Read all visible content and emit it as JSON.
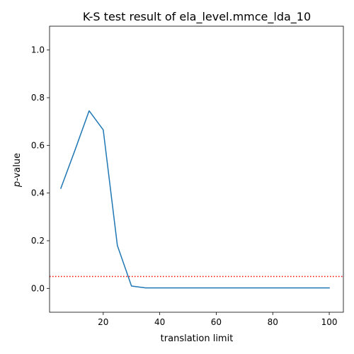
{
  "chart_data": {
    "type": "line",
    "title": "K-S test result of ela_level.mmce_lda_10",
    "xlabel": "translation limit",
    "ylabel_italic": "p",
    "ylabel_rest": "-value",
    "xlim": [
      1,
      105
    ],
    "ylim": [
      -0.1,
      1.1
    ],
    "xticks": [
      20,
      40,
      60,
      80,
      100
    ],
    "yticks": [
      0.0,
      0.2,
      0.4,
      0.6,
      0.8,
      1.0
    ],
    "xtick_labels": [
      "20",
      "40",
      "60",
      "80",
      "100"
    ],
    "ytick_labels": [
      "0.0",
      "0.2",
      "0.4",
      "0.6",
      "0.8",
      "1.0"
    ],
    "grid": false,
    "series": [
      {
        "color": "#1f77b4",
        "x": [
          5,
          10,
          15,
          20,
          25,
          30,
          35,
          40,
          45,
          50,
          55,
          60,
          65,
          70,
          75,
          80,
          85,
          90,
          95,
          100
        ],
        "y": [
          0.42,
          0.58,
          0.745,
          0.665,
          0.18,
          0.01,
          0.002,
          0.002,
          0.002,
          0.002,
          0.002,
          0.002,
          0.002,
          0.002,
          0.002,
          0.002,
          0.002,
          0.002,
          0.002,
          0.002
        ]
      }
    ],
    "reference_line": {
      "y": 0.05,
      "color": "#ff0000",
      "style": "dotted"
    }
  }
}
